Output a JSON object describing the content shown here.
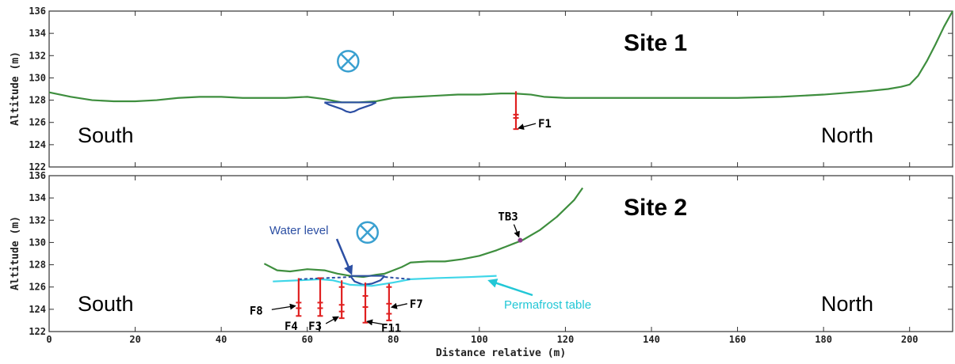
{
  "chart_data": [
    {
      "type": "line",
      "title": "Site 1",
      "xlabel": "",
      "ylabel": "Altitude (m)",
      "xlim": [
        0,
        210
      ],
      "ylim": [
        122,
        136
      ],
      "x_ticks": [
        0,
        20,
        40,
        60,
        80,
        100,
        120,
        140,
        160,
        180,
        200
      ],
      "y_ticks": [
        122,
        124,
        126,
        128,
        130,
        132,
        134,
        136
      ],
      "left_label": "South",
      "right_label": "North",
      "series": [
        {
          "color": "#3e8e3e",
          "x": [
            0,
            5,
            10,
            15,
            20,
            25,
            30,
            35,
            40,
            45,
            50,
            55,
            60,
            64,
            68,
            70,
            72,
            76,
            80,
            85,
            90,
            95,
            100,
            105,
            108,
            112,
            115,
            120,
            130,
            140,
            150,
            160,
            170,
            180,
            190,
            195,
            198,
            200,
            202,
            204,
            206,
            208,
            210
          ],
          "y": [
            128.7,
            128.3,
            128.0,
            127.9,
            127.9,
            128.0,
            128.2,
            128.3,
            128.3,
            128.2,
            128.2,
            128.2,
            128.3,
            128.1,
            127.8,
            127.8,
            127.8,
            127.9,
            128.2,
            128.3,
            128.4,
            128.5,
            128.5,
            128.6,
            128.6,
            128.5,
            128.3,
            128.2,
            128.2,
            128.2,
            128.2,
            128.2,
            128.3,
            128.5,
            128.8,
            129.0,
            129.2,
            129.4,
            130.2,
            131.5,
            133.0,
            134.6,
            136.0
          ]
        },
        {
          "color": "#2c4fa3",
          "x": [
            64,
            65,
            68,
            69,
            70,
            71,
            72,
            75,
            76
          ],
          "y": [
            127.8,
            127.6,
            127.2,
            127.0,
            126.9,
            127.0,
            127.2,
            127.6,
            127.8
          ]
        }
      ],
      "water_level": {
        "color": "#2c4fa3",
        "x": [
          64,
          76
        ],
        "y": 127.8
      },
      "boreholes": [
        {
          "label": "F1",
          "x": 108.5,
          "top": 128.8,
          "bottom": 125.4,
          "color": "#e02020",
          "marks": [
            126.7,
            126.4,
            125.4
          ]
        }
      ],
      "flow_symbol": {
        "symbol": "⊗",
        "x": 69.5,
        "y": 131.5,
        "color": "#3aa0d0"
      }
    },
    {
      "type": "line",
      "title": "Site 2",
      "xlabel": "Distance relative (m)",
      "ylabel": "Altitude (m)",
      "xlim": [
        0,
        210
      ],
      "ylim": [
        122,
        136
      ],
      "x_ticks": [
        0,
        20,
        40,
        60,
        80,
        100,
        120,
        140,
        160,
        180,
        200
      ],
      "y_ticks": [
        122,
        124,
        126,
        128,
        130,
        132,
        134,
        136
      ],
      "left_label": "South",
      "right_label": "North",
      "series": [
        {
          "color": "#3e8e3e",
          "x": [
            50,
            53,
            56,
            60,
            64,
            67,
            70,
            73,
            76,
            78,
            80,
            82,
            84,
            88,
            92,
            96,
            100,
            104,
            108,
            110,
            114,
            118,
            122,
            124
          ],
          "y": [
            128.1,
            127.5,
            127.4,
            127.6,
            127.5,
            127.2,
            127.0,
            126.9,
            127.1,
            127.2,
            127.5,
            127.8,
            128.2,
            128.3,
            128.3,
            128.5,
            128.8,
            129.3,
            129.9,
            130.2,
            131.1,
            132.3,
            133.8,
            134.9
          ]
        },
        {
          "color": "#2c4fa3",
          "x": [
            70,
            71,
            73,
            75,
            77,
            78
          ],
          "y": [
            127.0,
            126.5,
            126.2,
            126.3,
            126.6,
            127.0
          ]
        },
        {
          "color": "#3fd6e8",
          "x": [
            52,
            58,
            63,
            66,
            70,
            75,
            80,
            84,
            90,
            98,
            104
          ],
          "y": [
            126.5,
            126.6,
            126.7,
            126.6,
            126.2,
            126.1,
            126.4,
            126.7,
            126.8,
            126.9,
            127.0
          ]
        }
      ],
      "water_level": {
        "color": "#2c4fa3",
        "x": [
          70,
          78
        ],
        "y": 127.0
      },
      "boreholes": [
        {
          "label": "F8",
          "x": 58,
          "top": 126.8,
          "bottom": 123.4,
          "color": "#e02020",
          "marks": [
            124.6,
            124.1,
            123.4
          ]
        },
        {
          "label": "F4",
          "x": 63,
          "top": 126.8,
          "bottom": 123.4,
          "color": "#e02020",
          "marks": [
            126.8,
            124.6,
            124.1,
            123.4
          ]
        },
        {
          "label": "F3",
          "x": 68,
          "top": 126.6,
          "bottom": 123.2,
          "color": "#e02020",
          "marks": [
            126.0,
            124.4,
            123.8,
            123.2
          ]
        },
        {
          "label": "F11",
          "x": 73.5,
          "top": 126.4,
          "bottom": 122.8,
          "color": "#e02020",
          "marks": [
            125.2,
            124.2,
            122.8
          ]
        },
        {
          "label": "F7",
          "x": 79,
          "top": 126.3,
          "bottom": 123.0,
          "color": "#e02020",
          "marks": [
            126.0,
            124.5,
            123.6,
            123.0
          ]
        }
      ],
      "points": [
        {
          "label": "TB3",
          "x": 109.5,
          "y": 130.2,
          "color": "#8a3a8a"
        }
      ],
      "flow_symbol": {
        "symbol": "⊗",
        "x": 74,
        "y": 130.9,
        "color": "#3aa0d0"
      },
      "annotations": [
        {
          "text": "Water level",
          "color": "#2c4fa3"
        },
        {
          "text": "Permafrost table",
          "color": "#22c7d6"
        }
      ]
    }
  ]
}
